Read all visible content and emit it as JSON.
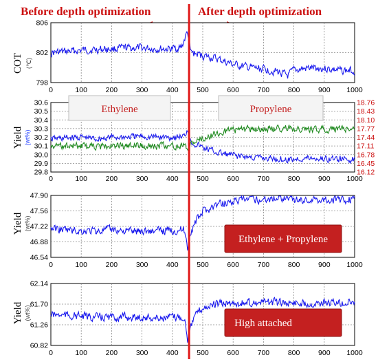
{
  "header": {
    "before_label": "Before depth optimization",
    "after_label": "After depth optimization"
  },
  "colors": {
    "accent_red": "#e01818",
    "series_blue": "#1a1aee",
    "series_green": "#1e8a1e",
    "grid": "#8a8a8a",
    "box_fill": "#c42020"
  },
  "annotations": {
    "ethylene_box": "Ethylene",
    "propylene_box": "Propylene",
    "ethylene_propylene_box": "Ethylene + Propylene",
    "high_attached_box": "High attached"
  },
  "panels": {
    "cot": {
      "ylabel": "COT",
      "unit": "(℃)"
    },
    "yield1": {
      "ylabel": "Yield",
      "unit": "(wt%)"
    },
    "yield2": {
      "ylabel": "Yield",
      "unit": "(wt%)"
    },
    "yield3": {
      "ylabel": "Yield",
      "unit": "(wt%)"
    }
  },
  "chart_data": [
    {
      "type": "line",
      "xlim": [
        0,
        1000
      ],
      "xticks": [
        0,
        100,
        200,
        300,
        400,
        500,
        600,
        700,
        800,
        900,
        1000
      ],
      "ylim": [
        798,
        806
      ],
      "yticks": [
        "798",
        "802",
        "806"
      ],
      "ylabel": "COT",
      "grid": true,
      "series": [
        {
          "x": [
            0,
            50,
            100,
            150,
            200,
            250,
            300,
            350,
            400,
            430,
            450,
            460,
            480,
            500,
            550,
            600,
            650,
            700,
            750,
            780,
            800,
            850,
            900,
            950,
            1000
          ],
          "y": [
            802.0,
            802.1,
            802.3,
            802.4,
            802.5,
            802.6,
            802.6,
            802.5,
            802.5,
            802.7,
            804.8,
            802.0,
            801.8,
            801.6,
            801.1,
            800.4,
            800.0,
            799.8,
            799.4,
            798.9,
            799.6,
            799.9,
            799.9,
            799.6,
            799.6
          ]
        }
      ]
    },
    {
      "type": "line",
      "xlim": [
        0,
        1000
      ],
      "xticks": [
        0,
        100,
        200,
        300,
        400,
        500,
        600,
        700,
        800,
        900,
        1000
      ],
      "ylim": [
        29.8,
        30.6
      ],
      "yticks": [
        "29.8",
        "29.9",
        "30.0",
        "30.1",
        "30.2",
        "30.3",
        "30.4",
        "30.5",
        "30.6"
      ],
      "ylim_right": [
        16.12,
        18.76
      ],
      "yticks_right": [
        "16.12",
        "16.45",
        "16.78",
        "17.11",
        "17.44",
        "17.77",
        "18.10",
        "18.43",
        "18.76"
      ],
      "ylabel": "Yield",
      "grid": true,
      "series": [
        {
          "name": "Ethylene",
          "axis": "left",
          "x": [
            0,
            50,
            100,
            150,
            200,
            250,
            300,
            350,
            400,
            440,
            450,
            460,
            500,
            550,
            600,
            650,
            700,
            750,
            780,
            800,
            850,
            900,
            950,
            1000
          ],
          "y": [
            30.18,
            30.19,
            30.2,
            30.18,
            30.2,
            30.2,
            30.21,
            30.2,
            30.2,
            30.21,
            30.3,
            30.15,
            30.08,
            30.02,
            29.99,
            29.97,
            29.96,
            29.95,
            29.94,
            29.95,
            29.96,
            29.95,
            29.95,
            29.94
          ]
        },
        {
          "name": "Propylene",
          "axis": "right",
          "x": [
            0,
            50,
            100,
            150,
            200,
            250,
            300,
            350,
            400,
            440,
            450,
            460,
            500,
            550,
            600,
            650,
            700,
            750,
            780,
            800,
            850,
            900,
            950,
            1000
          ],
          "y": [
            17.1,
            17.12,
            17.1,
            17.08,
            17.11,
            17.1,
            17.12,
            17.1,
            17.12,
            17.1,
            16.95,
            17.2,
            17.4,
            17.6,
            17.7,
            17.74,
            17.76,
            17.78,
            17.82,
            17.78,
            17.75,
            17.74,
            17.74,
            17.74
          ]
        }
      ]
    },
    {
      "type": "line",
      "xlim": [
        0,
        1000
      ],
      "xticks": [
        0,
        100,
        200,
        300,
        400,
        500,
        600,
        700,
        800,
        900,
        1000
      ],
      "ylim": [
        46.54,
        47.9
      ],
      "yticks": [
        "46.54",
        "46.88",
        "47.22",
        "47.56",
        "47.90"
      ],
      "ylabel": "Yield",
      "grid": true,
      "series": [
        {
          "x": [
            0,
            50,
            100,
            150,
            200,
            250,
            300,
            350,
            400,
            440,
            450,
            460,
            480,
            500,
            550,
            600,
            650,
            700,
            750,
            780,
            800,
            850,
            900,
            950,
            1000
          ],
          "y": [
            47.18,
            47.14,
            47.12,
            47.12,
            47.15,
            47.12,
            47.12,
            47.12,
            47.14,
            47.14,
            46.75,
            47.1,
            47.35,
            47.55,
            47.7,
            47.78,
            47.8,
            47.82,
            47.85,
            47.88,
            47.8,
            47.8,
            47.82,
            47.8,
            47.82
          ]
        }
      ]
    },
    {
      "type": "line",
      "xlim": [
        0,
        1000
      ],
      "xticks": [
        0,
        100,
        200,
        300,
        400,
        500,
        600,
        700,
        800,
        900,
        1000
      ],
      "ylim": [
        60.82,
        62.14
      ],
      "yticks": [
        "60.82",
        "61.26",
        "61.70",
        "62.14"
      ],
      "ylabel": "Yield",
      "grid": true,
      "series": [
        {
          "x": [
            0,
            50,
            100,
            150,
            200,
            250,
            300,
            350,
            400,
            440,
            450,
            455,
            465,
            480,
            500,
            550,
            600,
            650,
            700,
            750,
            800,
            850,
            900,
            950,
            1000
          ],
          "y": [
            61.48,
            61.46,
            61.44,
            61.42,
            61.42,
            61.42,
            61.42,
            61.4,
            61.42,
            61.42,
            60.95,
            61.2,
            61.3,
            61.5,
            61.62,
            61.7,
            61.72,
            61.73,
            61.74,
            61.73,
            61.73,
            61.72,
            61.73,
            61.72,
            61.74
          ]
        }
      ]
    }
  ]
}
